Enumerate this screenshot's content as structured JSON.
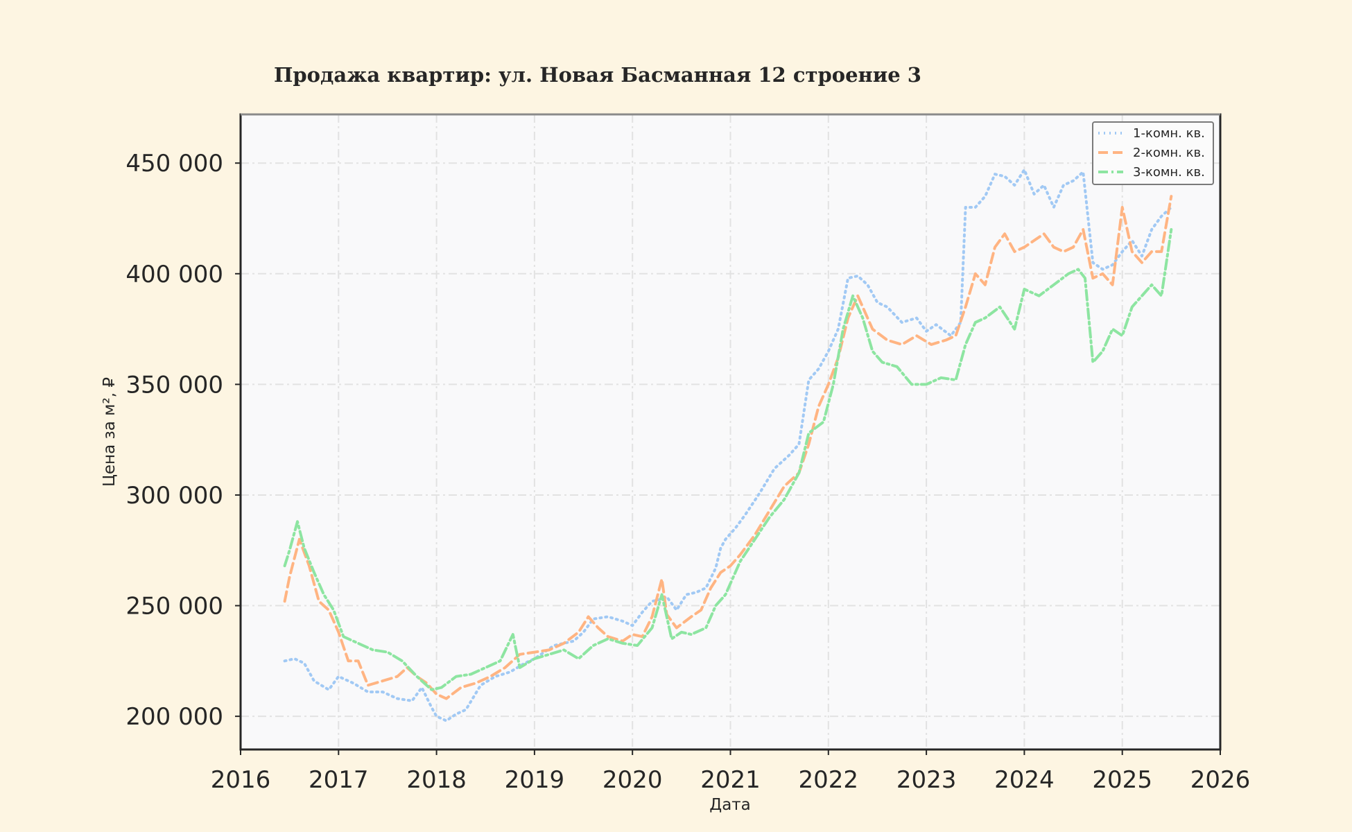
{
  "chart_data": {
    "type": "line",
    "title": "Продажа квартир: ул. Новая Басманная 12 строение 3",
    "xlabel": "Дата",
    "ylabel": "Цена за м², ₽",
    "xlim": [
      2016,
      2026
    ],
    "ylim": [
      185000,
      472000
    ],
    "x_ticks": [
      2016,
      2017,
      2018,
      2019,
      2020,
      2021,
      2022,
      2023,
      2024,
      2025,
      2026
    ],
    "y_ticks": [
      200000,
      250000,
      300000,
      350000,
      400000,
      450000
    ],
    "y_tick_labels": [
      "200 000",
      "250 000",
      "300 000",
      "350 000",
      "400 000",
      "450 000"
    ],
    "grid": true,
    "legend_position": "top-right",
    "colors": {
      "background": "#fdf5e2",
      "plot_background": "#f9f9fa"
    },
    "series": [
      {
        "name": "1-комн. кв.",
        "color": "#a1c9f4",
        "style": "dotted",
        "x": [
          2016.45,
          2016.55,
          2016.65,
          2016.75,
          2016.9,
          2017.0,
          2017.15,
          2017.3,
          2017.45,
          2017.6,
          2017.75,
          2017.85,
          2017.95,
          2018.0,
          2018.1,
          2018.2,
          2018.3,
          2018.45,
          2018.6,
          2018.75,
          2018.9,
          2019.0,
          2019.2,
          2019.4,
          2019.5,
          2019.6,
          2019.75,
          2019.9,
          2020.0,
          2020.1,
          2020.2,
          2020.3,
          2020.35,
          2020.45,
          2020.55,
          2020.65,
          2020.75,
          2020.85,
          2020.9,
          2020.95,
          2021.05,
          2021.15,
          2021.3,
          2021.45,
          2021.6,
          2021.7,
          2021.8,
          2021.9,
          2022.0,
          2022.1,
          2022.2,
          2022.3,
          2022.4,
          2022.5,
          2022.6,
          2022.75,
          2022.9,
          2023.0,
          2023.1,
          2023.25,
          2023.35,
          2023.4,
          2023.5,
          2023.6,
          2023.7,
          2023.8,
          2023.9,
          2024.0,
          2024.1,
          2024.2,
          2024.3,
          2024.4,
          2024.5,
          2024.6,
          2024.7,
          2024.8,
          2024.9,
          2025.0,
          2025.1,
          2025.2,
          2025.3,
          2025.4,
          2025.5
        ],
        "values": [
          225000,
          226000,
          224000,
          216000,
          212000,
          218000,
          215000,
          211000,
          211000,
          208000,
          207000,
          213000,
          204000,
          200000,
          198000,
          201000,
          203000,
          214000,
          218000,
          220000,
          224000,
          226000,
          232000,
          234000,
          238000,
          244000,
          245000,
          243000,
          241000,
          247000,
          252000,
          253000,
          254000,
          248000,
          255000,
          256000,
          258000,
          267000,
          276000,
          280000,
          285000,
          291000,
          301000,
          312000,
          318000,
          323000,
          352000,
          357000,
          365000,
          375000,
          398000,
          399000,
          395000,
          387000,
          385000,
          378000,
          380000,
          374000,
          377000,
          372000,
          378000,
          430000,
          430000,
          435000,
          445000,
          444000,
          440000,
          447000,
          436000,
          440000,
          430000,
          440000,
          442000,
          446000,
          405000,
          402000,
          404000,
          410000,
          415000,
          408000,
          420000,
          426000,
          430000
        ]
      },
      {
        "name": "2-комн. кв.",
        "color": "#ffb482",
        "style": "dashed",
        "x": [
          2016.45,
          2016.5,
          2016.6,
          2016.7,
          2016.8,
          2016.9,
          2017.0,
          2017.1,
          2017.2,
          2017.3,
          2017.45,
          2017.6,
          2017.7,
          2017.8,
          2017.9,
          2018.0,
          2018.1,
          2018.25,
          2018.4,
          2018.55,
          2018.7,
          2018.85,
          2019.0,
          2019.15,
          2019.3,
          2019.45,
          2019.55,
          2019.65,
          2019.75,
          2019.9,
          2020.0,
          2020.1,
          2020.2,
          2020.3,
          2020.35,
          2020.45,
          2020.6,
          2020.7,
          2020.8,
          2020.9,
          2021.0,
          2021.1,
          2021.25,
          2021.4,
          2021.55,
          2021.7,
          2021.8,
          2021.9,
          2022.0,
          2022.1,
          2022.2,
          2022.3,
          2022.45,
          2022.6,
          2022.75,
          2022.9,
          2023.05,
          2023.2,
          2023.3,
          2023.4,
          2023.5,
          2023.6,
          2023.7,
          2023.8,
          2023.9,
          2024.0,
          2024.1,
          2024.2,
          2024.3,
          2024.4,
          2024.5,
          2024.6,
          2024.7,
          2024.8,
          2024.9,
          2025.0,
          2025.1,
          2025.2,
          2025.3,
          2025.4,
          2025.5
        ],
        "values": [
          252000,
          263000,
          280000,
          268000,
          252000,
          248000,
          238000,
          225000,
          225000,
          214000,
          216000,
          218000,
          222000,
          218000,
          215000,
          210000,
          208000,
          213000,
          215000,
          218000,
          222000,
          228000,
          229000,
          230000,
          233000,
          238000,
          245000,
          240000,
          236000,
          234000,
          237000,
          236000,
          245000,
          262000,
          246000,
          240000,
          245000,
          248000,
          258000,
          265000,
          268000,
          273000,
          282000,
          293000,
          304000,
          310000,
          323000,
          340000,
          350000,
          362000,
          380000,
          390000,
          375000,
          370000,
          368000,
          372000,
          368000,
          370000,
          372000,
          385000,
          400000,
          395000,
          412000,
          418000,
          410000,
          412000,
          415000,
          418000,
          412000,
          410000,
          412000,
          420000,
          398000,
          400000,
          395000,
          430000,
          410000,
          405000,
          410000,
          410000,
          435000
        ]
      },
      {
        "name": "3-комн. кв.",
        "color": "#8de5a1",
        "style": "dash-dot",
        "x": [
          2016.45,
          2016.5,
          2016.58,
          2016.65,
          2016.75,
          2016.85,
          2016.95,
          2017.05,
          2017.2,
          2017.35,
          2017.5,
          2017.65,
          2017.8,
          2017.95,
          2018.05,
          2018.2,
          2018.35,
          2018.5,
          2018.65,
          2018.78,
          2018.85,
          2019.0,
          2019.15,
          2019.3,
          2019.45,
          2019.6,
          2019.75,
          2019.9,
          2020.05,
          2020.2,
          2020.3,
          2020.4,
          2020.5,
          2020.6,
          2020.75,
          2020.85,
          2020.95,
          2021.1,
          2021.25,
          2021.4,
          2021.55,
          2021.7,
          2021.8,
          2021.95,
          2022.05,
          2022.15,
          2022.25,
          2022.35,
          2022.45,
          2022.55,
          2022.7,
          2022.85,
          2023.0,
          2023.15,
          2023.3,
          2023.4,
          2023.5,
          2023.6,
          2023.75,
          2023.9,
          2024.0,
          2024.15,
          2024.3,
          2024.45,
          2024.55,
          2024.62,
          2024.7,
          2024.8,
          2024.9,
          2025.0,
          2025.1,
          2025.2,
          2025.3,
          2025.4,
          2025.5
        ],
        "values": [
          268000,
          275000,
          288000,
          276000,
          265000,
          255000,
          248000,
          236000,
          233000,
          230000,
          229000,
          225000,
          218000,
          212000,
          213000,
          218000,
          219000,
          222000,
          225000,
          237000,
          222000,
          226000,
          228000,
          230000,
          226000,
          232000,
          235000,
          233000,
          232000,
          240000,
          255000,
          235000,
          238000,
          237000,
          240000,
          250000,
          255000,
          270000,
          280000,
          290000,
          298000,
          310000,
          328000,
          333000,
          350000,
          375000,
          390000,
          380000,
          365000,
          360000,
          358000,
          350000,
          350000,
          353000,
          352000,
          368000,
          378000,
          380000,
          385000,
          375000,
          393000,
          390000,
          395000,
          400000,
          402000,
          398000,
          360000,
          365000,
          375000,
          372000,
          385000,
          390000,
          395000,
          390000,
          420000
        ]
      }
    ]
  }
}
